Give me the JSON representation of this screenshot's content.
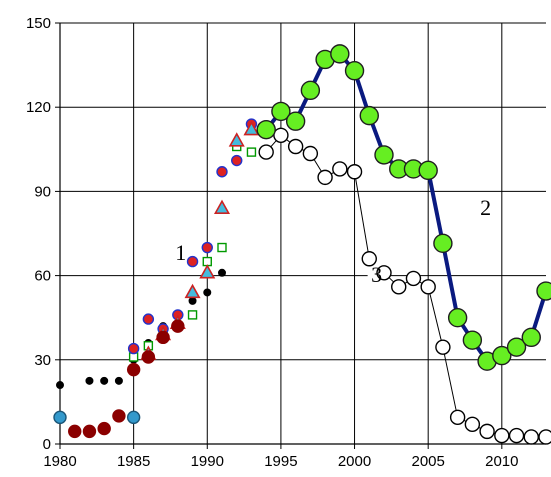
{
  "chart_data": {
    "type": "scatter",
    "xlim": [
      1980,
      2013
    ],
    "ylim": [
      0,
      150
    ],
    "x_ticks": [
      "1980",
      "1985",
      "1990",
      "1995",
      "2000",
      "2005",
      "2010"
    ],
    "y_ticks": [
      "0",
      "30",
      "60",
      "90",
      "120",
      "150"
    ],
    "grid": true,
    "annotations": [
      {
        "text": "1",
        "x": 1988.2,
        "y": 66
      },
      {
        "text": "2",
        "x": 2008.9,
        "y": 82
      },
      {
        "text": "3",
        "x": 2001.5,
        "y": 58
      }
    ],
    "series": [
      {
        "marker": "circle",
        "size": 3.5,
        "fill": "#000000",
        "stroke": "#000000",
        "line": false,
        "points": [
          [
            1980,
            21
          ],
          [
            1982,
            22.5
          ],
          [
            1983,
            22.5
          ],
          [
            1984,
            22.5
          ],
          [
            1985,
            30
          ],
          [
            1986,
            36
          ],
          [
            1987,
            42
          ],
          [
            1988,
            43
          ],
          [
            1989,
            51
          ],
          [
            1990,
            54
          ],
          [
            1991,
            61
          ]
        ]
      },
      {
        "marker": "square",
        "size": 4,
        "fill": "#ffffff",
        "stroke": "#009900",
        "line": false,
        "points": [
          [
            1985,
            31
          ],
          [
            1986,
            35
          ],
          [
            1987,
            39
          ],
          [
            1988,
            42
          ],
          [
            1989,
            46
          ],
          [
            1990,
            65
          ],
          [
            1991,
            70
          ],
          [
            1992,
            106
          ],
          [
            1993,
            104
          ]
        ]
      },
      {
        "marker": "circle",
        "size": 5,
        "fill": "#dd2222",
        "stroke": "#2233cc",
        "line": false,
        "points": [
          [
            1985,
            34
          ],
          [
            1986,
            44.5
          ],
          [
            1987,
            41
          ],
          [
            1988,
            46
          ],
          [
            1989,
            65
          ],
          [
            1990,
            70
          ],
          [
            1991,
            97
          ],
          [
            1992,
            101
          ],
          [
            1993,
            114
          ]
        ]
      },
      {
        "marker": "triangle",
        "size": 7,
        "fill": "#44bbdd",
        "stroke": "#cc2222",
        "line": false,
        "points": [
          [
            1986,
            32
          ],
          [
            1987,
            39
          ],
          [
            1988,
            43
          ],
          [
            1989,
            54
          ],
          [
            1990,
            61
          ],
          [
            1991,
            84
          ],
          [
            1992,
            108
          ],
          [
            1993,
            112
          ]
        ]
      },
      {
        "marker": "circle",
        "size": 6,
        "fill": "#8b0000",
        "stroke": "#8b0000",
        "line": false,
        "points": [
          [
            1981,
            4.5
          ],
          [
            1982,
            4.5
          ],
          [
            1983,
            5.5
          ],
          [
            1984,
            10
          ],
          [
            1985,
            26.5
          ],
          [
            1986,
            31
          ],
          [
            1987,
            38
          ],
          [
            1988,
            42
          ]
        ]
      },
      {
        "marker": "circle",
        "size": 6,
        "fill": "#3399cc",
        "stroke": "#1a5577",
        "line": false,
        "points": [
          [
            1980,
            9.5
          ],
          [
            1985,
            9.5
          ]
        ]
      },
      {
        "marker": "circle",
        "size": 7,
        "fill": "#ffffff",
        "stroke": "#000000",
        "line": true,
        "line_color": "#000000",
        "line_width": 1,
        "points": [
          [
            1994,
            104
          ],
          [
            1995,
            110
          ],
          [
            1996,
            106
          ],
          [
            1997,
            103.5
          ],
          [
            1998,
            95
          ],
          [
            1999,
            98
          ],
          [
            2000,
            97
          ],
          [
            2001,
            66
          ],
          [
            2002,
            61
          ],
          [
            2003,
            56
          ],
          [
            2004,
            59
          ],
          [
            2005,
            56
          ],
          [
            2006,
            34.5
          ],
          [
            2007,
            9.5
          ],
          [
            2008,
            7
          ],
          [
            2009,
            4.5
          ],
          [
            2010,
            3
          ],
          [
            2011,
            3
          ],
          [
            2012,
            2.5
          ],
          [
            2013,
            2.5
          ]
        ]
      },
      {
        "marker": "circle",
        "size": 9,
        "fill": "#66ee22",
        "stroke": "#1f1f1f",
        "line": true,
        "line_color": "#0a1a80",
        "line_width": 4,
        "points": [
          [
            1994,
            112
          ],
          [
            1995,
            118.5
          ],
          [
            1996,
            115
          ],
          [
            1997,
            126
          ],
          [
            1998,
            137
          ],
          [
            1999,
            139
          ],
          [
            2000,
            133
          ],
          [
            2001,
            117
          ],
          [
            2002,
            103
          ],
          [
            2003,
            98
          ],
          [
            2004,
            98
          ],
          [
            2005,
            97.5
          ],
          [
            2006,
            71.5
          ],
          [
            2007,
            45
          ],
          [
            2008,
            37
          ],
          [
            2009,
            29.5
          ],
          [
            2010,
            31.5
          ],
          [
            2011,
            34.5
          ],
          [
            2012,
            38
          ],
          [
            2013,
            54.5
          ]
        ]
      }
    ]
  }
}
